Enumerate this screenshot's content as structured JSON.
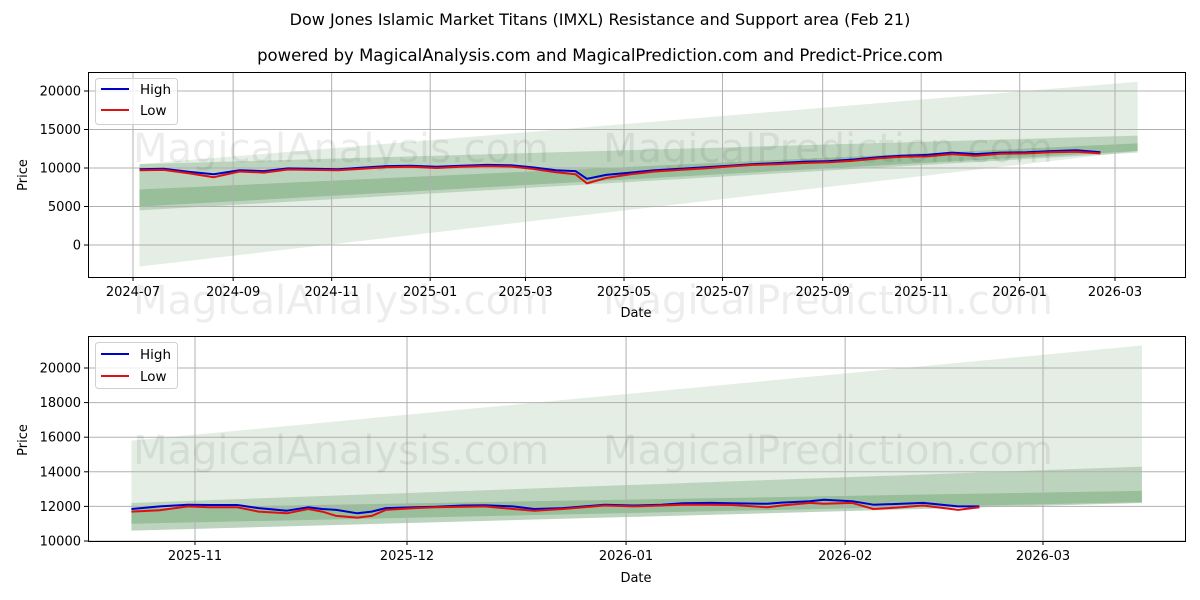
{
  "header": {
    "title": "Dow Jones Islamic Market Titans (IMXL) Resistance and Support area (Feb 21)",
    "subtitle": "powered by MagicalAnalysis.com and MagicalPrediction.com and Predict-Price.com"
  },
  "watermarks": [
    "MagicalAnalysis.com",
    "MagicalPrediction.com"
  ],
  "colors": {
    "high": "#0000cc",
    "low": "#dd1111",
    "band_light": "#c8e6c9",
    "band_mid": "#a5d6a7",
    "band_dark": "#81c784",
    "grid": "#b0b0b0"
  },
  "legend": {
    "items": [
      {
        "label": "High",
        "color": "#0000cc"
      },
      {
        "label": "Low",
        "color": "#dd1111"
      }
    ]
  },
  "chart_data": [
    {
      "type": "line",
      "title": "Dow Jones Islamic Market Titans (IMXL) Resistance and Support area (Feb 21) — full range",
      "xlabel": "Date",
      "ylabel": "Price",
      "ylim": [
        -4000,
        22500
      ],
      "grid": true,
      "legend_position": "upper left",
      "x_ticks": [
        "2024-07",
        "2024-09",
        "2024-11",
        "2025-01",
        "2025-03",
        "2025-05",
        "2025-07",
        "2025-09",
        "2025-11",
        "2026-01",
        "2026-03"
      ],
      "y_ticks": [
        0,
        5000,
        10000,
        15000,
        20000
      ],
      "x": [
        "2024-07-05",
        "2024-07-20",
        "2024-08-05",
        "2024-08-20",
        "2024-09-05",
        "2024-09-20",
        "2024-10-05",
        "2024-10-20",
        "2024-11-05",
        "2024-11-20",
        "2024-12-05",
        "2024-12-20",
        "2025-01-05",
        "2025-01-20",
        "2025-02-05",
        "2025-02-20",
        "2025-03-05",
        "2025-03-20",
        "2025-04-01",
        "2025-04-08",
        "2025-04-20",
        "2025-05-05",
        "2025-05-20",
        "2025-06-05",
        "2025-06-20",
        "2025-07-05",
        "2025-07-20",
        "2025-08-05",
        "2025-08-20",
        "2025-09-05",
        "2025-09-20",
        "2025-10-05",
        "2025-10-20",
        "2025-11-05",
        "2025-11-20",
        "2025-12-05",
        "2025-12-20",
        "2026-01-05",
        "2026-01-20",
        "2026-02-05",
        "2026-02-20"
      ],
      "series": [
        {
          "name": "High",
          "values": [
            9850,
            9900,
            9500,
            9200,
            9700,
            9600,
            9950,
            9900,
            9850,
            10050,
            10250,
            10300,
            10150,
            10300,
            10400,
            10350,
            10100,
            9700,
            9600,
            8600,
            9100,
            9400,
            9700,
            9900,
            10100,
            10300,
            10500,
            10650,
            10800,
            10900,
            11100,
            11400,
            11600,
            11700,
            12000,
            11800,
            12000,
            12050,
            12200,
            12300,
            12050
          ]
        },
        {
          "name": "Low",
          "values": [
            9700,
            9750,
            9300,
            8800,
            9550,
            9400,
            9800,
            9750,
            9700,
            9900,
            10100,
            10150,
            10000,
            10150,
            10250,
            10200,
            9900,
            9450,
            9200,
            8000,
            8700,
            9200,
            9550,
            9750,
            9950,
            10200,
            10400,
            10500,
            10650,
            10750,
            10950,
            11250,
            11450,
            11500,
            11800,
            11600,
            11850,
            11900,
            12050,
            12100,
            11900
          ]
        }
      ],
      "bands": [
        {
          "name": "outer_support_resistance",
          "x_start": "2024-07-05",
          "x_end": "2026-03-15",
          "upper_start": 10500,
          "upper_end": 21200,
          "lower_start": -2800,
          "lower_end": 12200
        },
        {
          "name": "mid_band",
          "x_start": "2024-07-05",
          "x_end": "2026-03-15",
          "upper_start": 10500,
          "upper_end": 14200,
          "lower_start": 4500,
          "lower_end": 12000
        },
        {
          "name": "inner_band",
          "x_start": "2024-07-05",
          "x_end": "2026-03-15",
          "upper_start": 7200,
          "upper_end": 13200,
          "lower_start": 5000,
          "lower_end": 12200
        }
      ]
    },
    {
      "type": "line",
      "title": "Zoomed recent range",
      "xlabel": "Date",
      "ylabel": "Price",
      "ylim": [
        10000,
        21900
      ],
      "grid": true,
      "legend_position": "upper left",
      "x_ticks": [
        "2025-11",
        "2025-12",
        "2026-01",
        "2026-02",
        "2026-03"
      ],
      "y_ticks": [
        10000,
        12000,
        14000,
        16000,
        18000,
        20000
      ],
      "x": [
        "2025-10-23",
        "2025-10-27",
        "2025-10-31",
        "2025-11-03",
        "2025-11-07",
        "2025-11-10",
        "2025-11-14",
        "2025-11-17",
        "2025-11-19",
        "2025-11-21",
        "2025-11-24",
        "2025-11-26",
        "2025-11-28",
        "2025-12-02",
        "2025-12-05",
        "2025-12-09",
        "2025-12-12",
        "2025-12-16",
        "2025-12-19",
        "2025-12-23",
        "2025-12-29",
        "2026-01-02",
        "2026-01-06",
        "2026-01-09",
        "2026-01-13",
        "2026-01-16",
        "2026-01-21",
        "2026-01-23",
        "2026-01-27",
        "2026-01-29",
        "2026-02-02",
        "2026-02-05",
        "2026-02-09",
        "2026-02-12",
        "2026-02-17",
        "2026-02-20"
      ],
      "series": [
        {
          "name": "High",
          "values": [
            11850,
            12000,
            12100,
            12080,
            12080,
            11900,
            11750,
            11950,
            11850,
            11800,
            11600,
            11700,
            11900,
            11950,
            11980,
            12050,
            12070,
            12000,
            11850,
            11900,
            12100,
            12050,
            12100,
            12180,
            12200,
            12180,
            12150,
            12220,
            12300,
            12380,
            12300,
            12100,
            12150,
            12200,
            12000,
            12000
          ]
        },
        {
          "name": "Low",
          "values": [
            11700,
            11780,
            12000,
            11950,
            11950,
            11700,
            11600,
            11850,
            11700,
            11450,
            11350,
            11450,
            11800,
            11900,
            11950,
            11980,
            12000,
            11850,
            11750,
            11850,
            12050,
            12000,
            12050,
            12100,
            12100,
            12080,
            11950,
            12050,
            12200,
            12150,
            12200,
            11850,
            11950,
            12050,
            11800,
            11950
          ]
        }
      ],
      "bands": [
        {
          "name": "outer_support_resistance",
          "x_start": "2025-10-23",
          "x_end": "2026-03-15",
          "upper_start": 15800,
          "upper_end": 21300,
          "lower_start": 10600,
          "lower_end": 12200
        },
        {
          "name": "mid_band",
          "x_start": "2025-10-23",
          "x_end": "2026-03-15",
          "upper_start": 12200,
          "upper_end": 14300,
          "lower_start": 10600,
          "lower_end": 12200
        },
        {
          "name": "inner_band",
          "x_start": "2025-10-23",
          "x_end": "2026-03-15",
          "upper_start": 11900,
          "upper_end": 12900,
          "lower_start": 11000,
          "lower_end": 12250
        }
      ]
    }
  ]
}
